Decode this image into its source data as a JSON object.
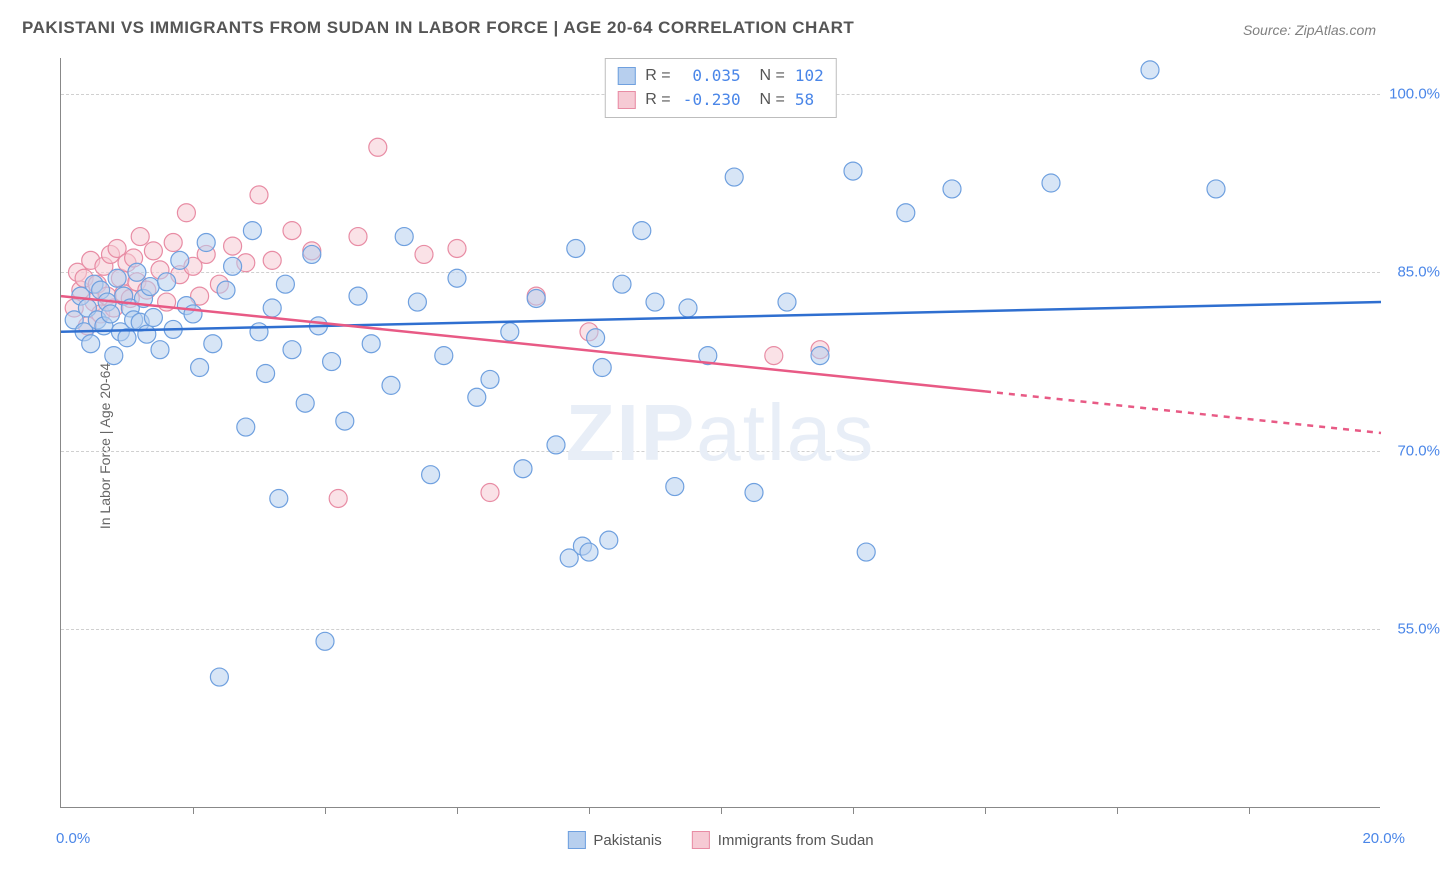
{
  "title": "PAKISTANI VS IMMIGRANTS FROM SUDAN IN LABOR FORCE | AGE 20-64 CORRELATION CHART",
  "source": "Source: ZipAtlas.com",
  "watermark": "ZIPatlas",
  "watermark_color": "#e8eef7",
  "y_axis": {
    "label": "In Labor Force | Age 20-64",
    "ticks": [
      55.0,
      70.0,
      85.0,
      100.0
    ],
    "tick_format": "{v}.0%",
    "min": 40.0,
    "max": 103.0
  },
  "x_axis": {
    "min": 0.0,
    "max": 20.0,
    "tick_interval": 2.0,
    "label_left": "0.0%",
    "label_right": "20.0%"
  },
  "colors": {
    "blue_stroke": "#6fa0df",
    "blue_fill": "#b7cfee",
    "pink_stroke": "#e88ca4",
    "pink_fill": "#f6cad4",
    "blue_line": "#2f6fd0",
    "pink_line": "#e85a85",
    "tick_text": "#4a86e8",
    "grid": "#d0d0d0"
  },
  "marker_radius": 9,
  "marker_opacity": 0.55,
  "line_width": 2.5,
  "stats": {
    "series_a": {
      "R": "0.035",
      "N": "102"
    },
    "series_b": {
      "R": "-0.230",
      "N": "58"
    }
  },
  "series_a": {
    "name": "Pakistanis",
    "regression": {
      "x1": 0.0,
      "y1": 80.0,
      "x2": 20.0,
      "y2": 82.5
    },
    "points": [
      [
        0.2,
        81
      ],
      [
        0.3,
        83
      ],
      [
        0.35,
        80
      ],
      [
        0.4,
        82
      ],
      [
        0.45,
        79
      ],
      [
        0.5,
        84
      ],
      [
        0.55,
        81
      ],
      [
        0.6,
        83.5
      ],
      [
        0.65,
        80.5
      ],
      [
        0.7,
        82.5
      ],
      [
        0.75,
        81.5
      ],
      [
        0.8,
        78
      ],
      [
        0.85,
        84.5
      ],
      [
        0.9,
        80
      ],
      [
        0.95,
        83
      ],
      [
        1.0,
        79.5
      ],
      [
        1.05,
        82
      ],
      [
        1.1,
        81
      ],
      [
        1.15,
        85
      ],
      [
        1.2,
        80.8
      ],
      [
        1.25,
        82.8
      ],
      [
        1.3,
        79.8
      ],
      [
        1.35,
        83.8
      ],
      [
        1.4,
        81.2
      ],
      [
        1.5,
        78.5
      ],
      [
        1.6,
        84.2
      ],
      [
        1.7,
        80.2
      ],
      [
        1.8,
        86
      ],
      [
        1.9,
        82.2
      ],
      [
        2.0,
        81.5
      ],
      [
        2.1,
        77
      ],
      [
        2.2,
        87.5
      ],
      [
        2.3,
        79
      ],
      [
        2.4,
        51
      ],
      [
        2.5,
        83.5
      ],
      [
        2.6,
        85.5
      ],
      [
        2.8,
        72
      ],
      [
        2.9,
        88.5
      ],
      [
        3.0,
        80
      ],
      [
        3.1,
        76.5
      ],
      [
        3.2,
        82
      ],
      [
        3.3,
        66
      ],
      [
        3.4,
        84
      ],
      [
        3.5,
        78.5
      ],
      [
        3.7,
        74
      ],
      [
        3.8,
        86.5
      ],
      [
        3.9,
        80.5
      ],
      [
        4.0,
        54
      ],
      [
        4.1,
        77.5
      ],
      [
        4.3,
        72.5
      ],
      [
        4.5,
        83
      ],
      [
        4.7,
        79
      ],
      [
        5.0,
        75.5
      ],
      [
        5.2,
        88
      ],
      [
        5.4,
        82.5
      ],
      [
        5.6,
        68
      ],
      [
        5.8,
        78
      ],
      [
        6.0,
        84.5
      ],
      [
        6.3,
        74.5
      ],
      [
        6.5,
        76
      ],
      [
        6.8,
        80
      ],
      [
        7.0,
        68.5
      ],
      [
        7.2,
        82.8
      ],
      [
        7.5,
        70.5
      ],
      [
        7.7,
        61
      ],
      [
        7.8,
        87
      ],
      [
        7.9,
        62
      ],
      [
        8.0,
        61.5
      ],
      [
        8.1,
        79.5
      ],
      [
        8.2,
        77
      ],
      [
        8.3,
        62.5
      ],
      [
        8.5,
        84
      ],
      [
        8.8,
        88.5
      ],
      [
        9.0,
        82.5
      ],
      [
        9.3,
        67
      ],
      [
        9.5,
        82
      ],
      [
        9.8,
        78
      ],
      [
        10.2,
        93
      ],
      [
        10.5,
        66.5
      ],
      [
        11.0,
        82.5
      ],
      [
        11.5,
        78
      ],
      [
        12.0,
        93.5
      ],
      [
        12.2,
        61.5
      ],
      [
        12.8,
        90
      ],
      [
        13.5,
        92
      ],
      [
        15.0,
        92.5
      ],
      [
        16.5,
        102
      ],
      [
        17.5,
        92
      ]
    ]
  },
  "series_b": {
    "name": "Immigrants from Sudan",
    "regression": {
      "x1": 0.0,
      "y1": 83.0,
      "x2": 14.0,
      "y2": 75.0
    },
    "regression_extrap": {
      "x1": 14.0,
      "y1": 75.0,
      "x2": 20.0,
      "y2": 71.5
    },
    "points": [
      [
        0.2,
        82
      ],
      [
        0.25,
        85
      ],
      [
        0.3,
        83.5
      ],
      [
        0.35,
        84.5
      ],
      [
        0.4,
        80.5
      ],
      [
        0.45,
        86
      ],
      [
        0.5,
        82.5
      ],
      [
        0.55,
        84
      ],
      [
        0.6,
        81.5
      ],
      [
        0.65,
        85.5
      ],
      [
        0.7,
        83
      ],
      [
        0.75,
        86.5
      ],
      [
        0.8,
        82
      ],
      [
        0.85,
        87
      ],
      [
        0.9,
        84.5
      ],
      [
        0.95,
        83.2
      ],
      [
        1.0,
        85.8
      ],
      [
        1.05,
        82.8
      ],
      [
        1.1,
        86.2
      ],
      [
        1.15,
        84.2
      ],
      [
        1.2,
        88
      ],
      [
        1.3,
        83.5
      ],
      [
        1.4,
        86.8
      ],
      [
        1.5,
        85.2
      ],
      [
        1.6,
        82.5
      ],
      [
        1.7,
        87.5
      ],
      [
        1.8,
        84.8
      ],
      [
        1.9,
        90
      ],
      [
        2.0,
        85.5
      ],
      [
        2.1,
        83
      ],
      [
        2.2,
        86.5
      ],
      [
        2.4,
        84
      ],
      [
        2.6,
        87.2
      ],
      [
        2.8,
        85.8
      ],
      [
        3.0,
        91.5
      ],
      [
        3.2,
        86
      ],
      [
        3.5,
        88.5
      ],
      [
        3.8,
        86.8
      ],
      [
        4.2,
        66
      ],
      [
        4.5,
        88
      ],
      [
        4.8,
        95.5
      ],
      [
        5.5,
        86.5
      ],
      [
        6.0,
        87
      ],
      [
        6.5,
        66.5
      ],
      [
        7.2,
        83
      ],
      [
        8.0,
        80
      ],
      [
        10.8,
        78
      ],
      [
        11.5,
        78.5
      ]
    ]
  },
  "legend": {
    "a": "Pakistanis",
    "b": "Immigrants from Sudan"
  }
}
